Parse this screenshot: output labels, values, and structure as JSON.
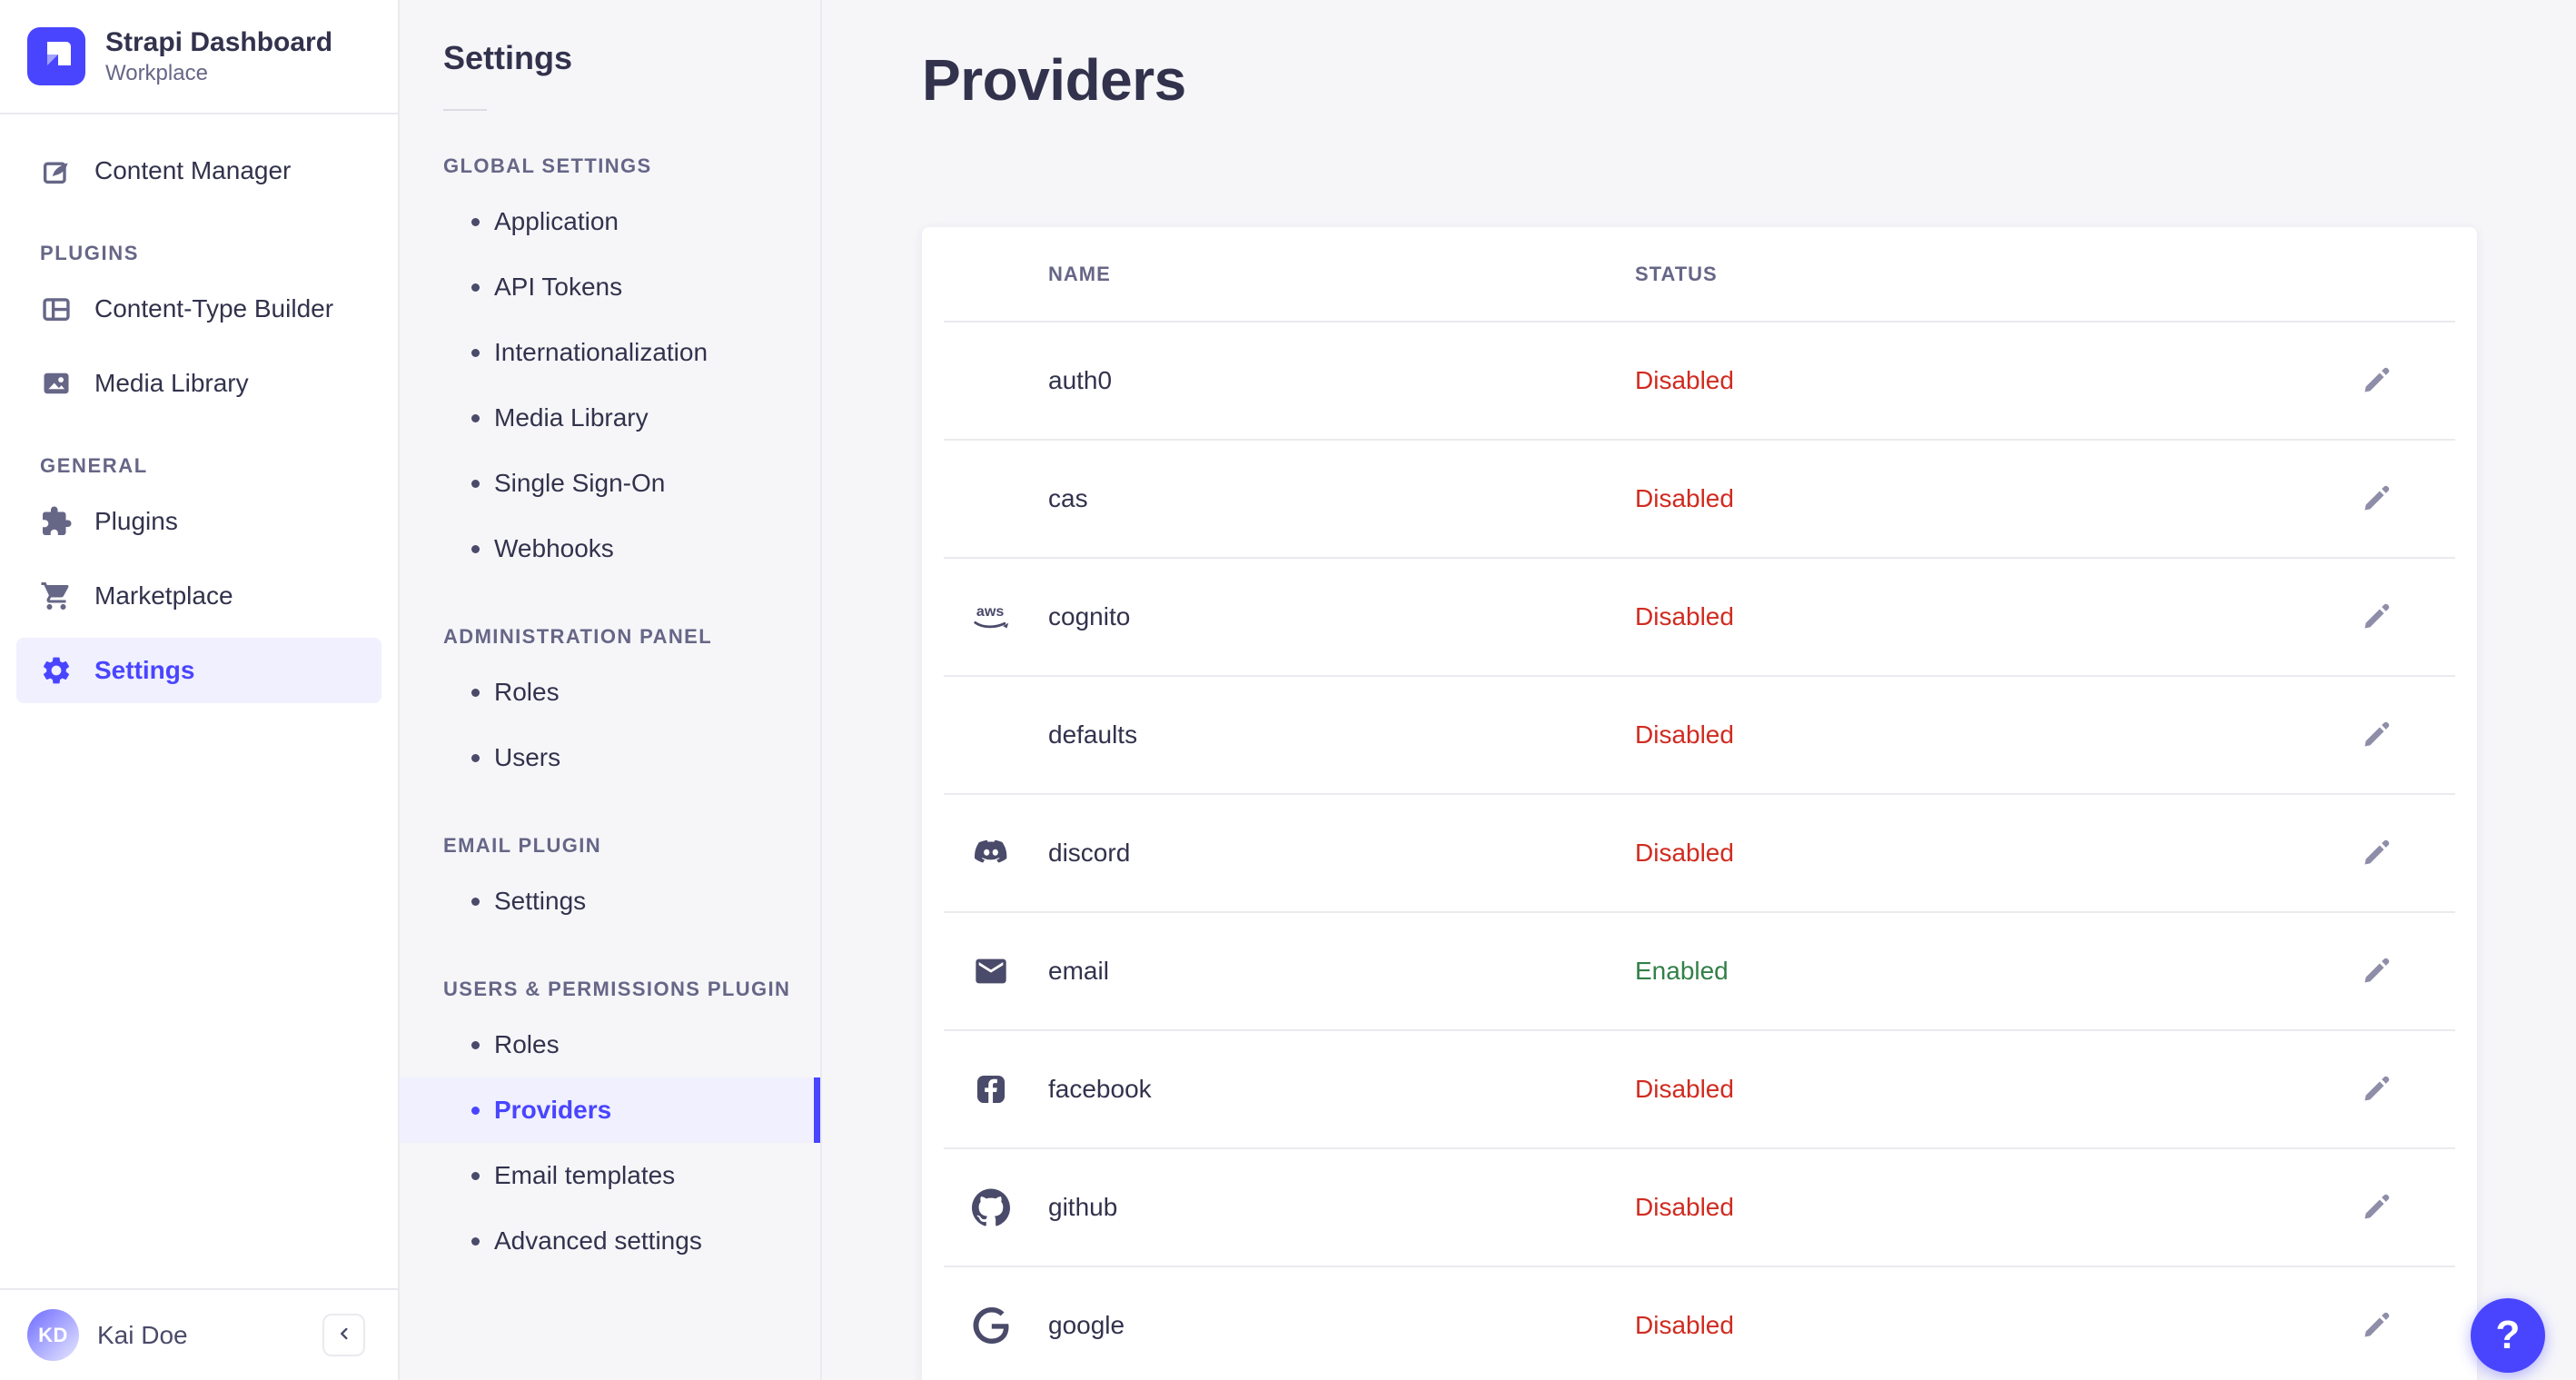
{
  "brand": {
    "title": "Strapi Dashboard",
    "subtitle": "Workplace",
    "logo_icon": "strapi-logo-icon"
  },
  "sidebar": {
    "primary": [
      {
        "label": "Content Manager",
        "icon": "feather-pen-icon",
        "active": false
      }
    ],
    "sections": [
      {
        "title": "PLUGINS",
        "items": [
          {
            "label": "Content-Type Builder",
            "icon": "layout-grid-icon",
            "active": false
          },
          {
            "label": "Media Library",
            "icon": "image-icon",
            "active": false
          }
        ]
      },
      {
        "title": "GENERAL",
        "items": [
          {
            "label": "Plugins",
            "icon": "puzzle-icon",
            "active": false
          },
          {
            "label": "Marketplace",
            "icon": "cart-icon",
            "active": false
          },
          {
            "label": "Settings",
            "icon": "gear-icon",
            "active": true
          }
        ]
      }
    ],
    "user": {
      "name": "Kai Doe",
      "initials": "KD"
    },
    "collapse_icon": "chevron-left-icon"
  },
  "settings_nav": {
    "title": "Settings",
    "sections": [
      {
        "title": "GLOBAL SETTINGS",
        "items": [
          {
            "label": "Application",
            "active": false
          },
          {
            "label": "API Tokens",
            "active": false
          },
          {
            "label": "Internationalization",
            "active": false
          },
          {
            "label": "Media Library",
            "active": false
          },
          {
            "label": "Single Sign-On",
            "active": false
          },
          {
            "label": "Webhooks",
            "active": false
          }
        ]
      },
      {
        "title": "ADMINISTRATION PANEL",
        "items": [
          {
            "label": "Roles",
            "active": false
          },
          {
            "label": "Users",
            "active": false
          }
        ]
      },
      {
        "title": "EMAIL PLUGIN",
        "items": [
          {
            "label": "Settings",
            "active": false
          }
        ]
      },
      {
        "title": "USERS & PERMISSIONS PLUGIN",
        "items": [
          {
            "label": "Roles",
            "active": false
          },
          {
            "label": "Providers",
            "active": true
          },
          {
            "label": "Email templates",
            "active": false
          },
          {
            "label": "Advanced settings",
            "active": false
          }
        ]
      }
    ]
  },
  "page": {
    "title": "Providers"
  },
  "providers_table": {
    "columns": [
      "NAME",
      "STATUS"
    ],
    "edit_icon": "pencil-icon",
    "rows": [
      {
        "name": "auth0",
        "icon": null,
        "status": "Disabled"
      },
      {
        "name": "cas",
        "icon": null,
        "status": "Disabled"
      },
      {
        "name": "cognito",
        "icon": "aws-icon",
        "status": "Disabled"
      },
      {
        "name": "defaults",
        "icon": null,
        "status": "Disabled"
      },
      {
        "name": "discord",
        "icon": "discord-icon",
        "status": "Disabled"
      },
      {
        "name": "email",
        "icon": "envelope-icon",
        "status": "Enabled"
      },
      {
        "name": "facebook",
        "icon": "facebook-icon",
        "status": "Disabled"
      },
      {
        "name": "github",
        "icon": "github-icon",
        "status": "Disabled"
      },
      {
        "name": "google",
        "icon": "google-icon",
        "status": "Disabled"
      }
    ]
  },
  "help": {
    "label": "?"
  },
  "colors": {
    "primary": "#4945FF",
    "primary_light": "#F0F0FF",
    "danger": "#D02B20",
    "success": "#328048",
    "text_dark": "#32324D",
    "text_muted": "#666687",
    "border": "#EAEAEF",
    "background": "#F6F6F9"
  }
}
